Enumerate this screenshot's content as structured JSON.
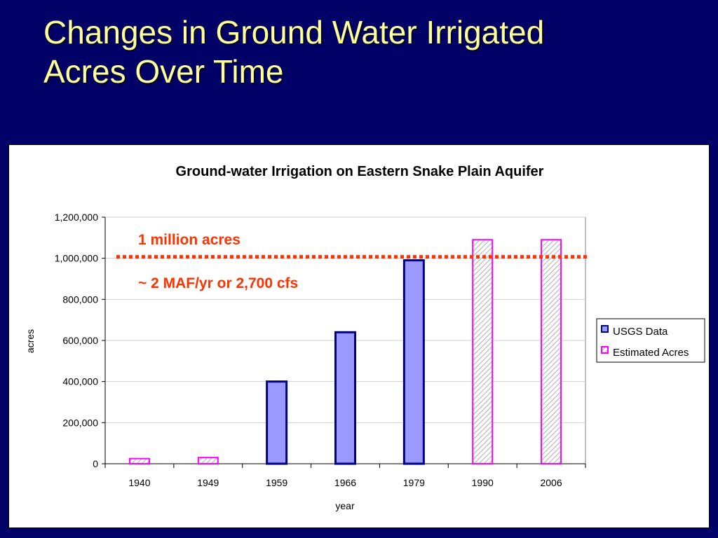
{
  "slide": {
    "title_line1": "Changes in Ground Water Irrigated",
    "title_line2": "Acres Over Time"
  },
  "chart_data": {
    "type": "bar",
    "title": "Ground-water Irrigation on Eastern Snake Plain Aquifer",
    "xlabel": "year",
    "ylabel": "acres",
    "categories": [
      "1940",
      "1949",
      "1959",
      "1966",
      "1979",
      "1990",
      "2006"
    ],
    "series": [
      {
        "name": "USGS Data",
        "values": [
          null,
          null,
          400000,
          640000,
          990000,
          null,
          null
        ]
      },
      {
        "name": "Estimated Acres",
        "values": [
          25000,
          30000,
          null,
          null,
          null,
          1090000,
          1090000
        ]
      }
    ],
    "ylim": [
      0,
      1200000
    ],
    "yticks": [
      0,
      200000,
      400000,
      600000,
      800000,
      1000000,
      1200000
    ],
    "ytick_labels": [
      "0",
      "200,000",
      "400,000",
      "600,000",
      "800,000",
      "1,000,000",
      "1,200,000"
    ],
    "reference_line": {
      "value": 1000000,
      "color": "#ff3300",
      "style": "dotted"
    },
    "annotations": [
      "1 million acres",
      "~ 2 MAF/yr or 2,700 cfs"
    ],
    "legend_position": "right",
    "colors": {
      "usgs_fill": "#9999ff",
      "usgs_stroke": "#000080",
      "estimated_stroke": "#ff00ff",
      "estimated_hatch": "#999999",
      "reference": "#ff3300"
    },
    "grid": "horizontal"
  }
}
